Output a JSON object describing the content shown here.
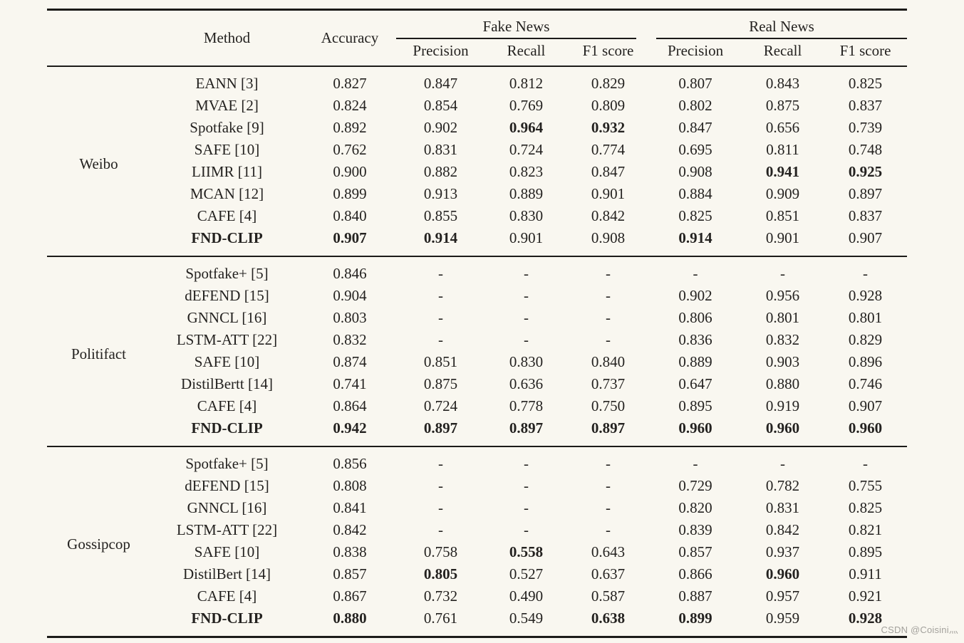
{
  "watermark": "CSDN @Coisini灬",
  "table": {
    "header": {
      "method": "Method",
      "accuracy": "Accuracy",
      "fake_news": "Fake News",
      "real_news": "Real News",
      "sub": [
        "Precision",
        "Recall",
        "F1 score"
      ]
    },
    "sections": [
      {
        "dataset": "Weibo",
        "rows": [
          {
            "method": "EANN [3]",
            "method_bold": false,
            "values": [
              "0.827",
              "0.847",
              "0.812",
              "0.829",
              "0.807",
              "0.843",
              "0.825"
            ],
            "bold": [
              0,
              0,
              0,
              0,
              0,
              0,
              0
            ]
          },
          {
            "method": "MVAE [2]",
            "method_bold": false,
            "values": [
              "0.824",
              "0.854",
              "0.769",
              "0.809",
              "0.802",
              "0.875",
              "0.837"
            ],
            "bold": [
              0,
              0,
              0,
              0,
              0,
              0,
              0
            ]
          },
          {
            "method": "Spotfake [9]",
            "method_bold": false,
            "values": [
              "0.892",
              "0.902",
              "0.964",
              "0.932",
              "0.847",
              "0.656",
              "0.739"
            ],
            "bold": [
              0,
              0,
              1,
              1,
              0,
              0,
              0
            ]
          },
          {
            "method": "SAFE [10]",
            "method_bold": false,
            "values": [
              "0.762",
              "0.831",
              "0.724",
              "0.774",
              "0.695",
              "0.811",
              "0.748"
            ],
            "bold": [
              0,
              0,
              0,
              0,
              0,
              0,
              0
            ]
          },
          {
            "method": "LIIMR [11]",
            "method_bold": false,
            "values": [
              "0.900",
              "0.882",
              "0.823",
              "0.847",
              "0.908",
              "0.941",
              "0.925"
            ],
            "bold": [
              0,
              0,
              0,
              0,
              0,
              1,
              1
            ]
          },
          {
            "method": "MCAN [12]",
            "method_bold": false,
            "values": [
              "0.899",
              "0.913",
              "0.889",
              "0.901",
              "0.884",
              "0.909",
              "0.897"
            ],
            "bold": [
              0,
              0,
              0,
              0,
              0,
              0,
              0
            ]
          },
          {
            "method": "CAFE [4]",
            "method_bold": false,
            "values": [
              "0.840",
              "0.855",
              "0.830",
              "0.842",
              "0.825",
              "0.851",
              "0.837"
            ],
            "bold": [
              0,
              0,
              0,
              0,
              0,
              0,
              0
            ]
          },
          {
            "method": "FND-CLIP",
            "method_bold": true,
            "values": [
              "0.907",
              "0.914",
              "0.901",
              "0.908",
              "0.914",
              "0.901",
              "0.907"
            ],
            "bold": [
              1,
              1,
              0,
              0,
              1,
              0,
              0
            ]
          }
        ]
      },
      {
        "dataset": "Politifact",
        "rows": [
          {
            "method": "Spotfake+ [5]",
            "method_bold": false,
            "values": [
              "0.846",
              "-",
              "-",
              "-",
              "-",
              "-",
              "-"
            ],
            "bold": [
              0,
              0,
              0,
              0,
              0,
              0,
              0
            ]
          },
          {
            "method": "dEFEND [15]",
            "method_bold": false,
            "values": [
              "0.904",
              "-",
              "-",
              "-",
              "0.902",
              "0.956",
              "0.928"
            ],
            "bold": [
              0,
              0,
              0,
              0,
              0,
              0,
              0
            ]
          },
          {
            "method": "GNNCL [16]",
            "method_bold": false,
            "values": [
              "0.803",
              "-",
              "-",
              "-",
              "0.806",
              "0.801",
              "0.801"
            ],
            "bold": [
              0,
              0,
              0,
              0,
              0,
              0,
              0
            ]
          },
          {
            "method": "LSTM-ATT [22]",
            "method_bold": false,
            "values": [
              "0.832",
              "-",
              "-",
              "-",
              "0.836",
              "0.832",
              "0.829"
            ],
            "bold": [
              0,
              0,
              0,
              0,
              0,
              0,
              0
            ]
          },
          {
            "method": "SAFE [10]",
            "method_bold": false,
            "values": [
              "0.874",
              "0.851",
              "0.830",
              "0.840",
              "0.889",
              "0.903",
              "0.896"
            ],
            "bold": [
              0,
              0,
              0,
              0,
              0,
              0,
              0
            ]
          },
          {
            "method": "DistilBertt [14]",
            "method_bold": false,
            "values": [
              "0.741",
              "0.875",
              "0.636",
              "0.737",
              "0.647",
              "0.880",
              "0.746"
            ],
            "bold": [
              0,
              0,
              0,
              0,
              0,
              0,
              0
            ]
          },
          {
            "method": "CAFE [4]",
            "method_bold": false,
            "values": [
              "0.864",
              "0.724",
              "0.778",
              "0.750",
              "0.895",
              "0.919",
              "0.907"
            ],
            "bold": [
              0,
              0,
              0,
              0,
              0,
              0,
              0
            ]
          },
          {
            "method": "FND-CLIP",
            "method_bold": true,
            "values": [
              "0.942",
              "0.897",
              "0.897",
              "0.897",
              "0.960",
              "0.960",
              "0.960"
            ],
            "bold": [
              1,
              1,
              1,
              1,
              1,
              1,
              1
            ]
          }
        ]
      },
      {
        "dataset": "Gossipcop",
        "rows": [
          {
            "method": "Spotfake+ [5]",
            "method_bold": false,
            "values": [
              "0.856",
              "-",
              "-",
              "-",
              "-",
              "-",
              "-"
            ],
            "bold": [
              0,
              0,
              0,
              0,
              0,
              0,
              0
            ]
          },
          {
            "method": "dEFEND [15]",
            "method_bold": false,
            "values": [
              "0.808",
              "-",
              "-",
              "-",
              "0.729",
              "0.782",
              "0.755"
            ],
            "bold": [
              0,
              0,
              0,
              0,
              0,
              0,
              0
            ]
          },
          {
            "method": "GNNCL [16]",
            "method_bold": false,
            "values": [
              "0.841",
              "-",
              "-",
              "-",
              "0.820",
              "0.831",
              "0.825"
            ],
            "bold": [
              0,
              0,
              0,
              0,
              0,
              0,
              0
            ]
          },
          {
            "method": "LSTM-ATT [22]",
            "method_bold": false,
            "values": [
              "0.842",
              "-",
              "-",
              "-",
              "0.839",
              "0.842",
              "0.821"
            ],
            "bold": [
              0,
              0,
              0,
              0,
              0,
              0,
              0
            ]
          },
          {
            "method": "SAFE [10]",
            "method_bold": false,
            "values": [
              "0.838",
              "0.758",
              "0.558",
              "0.643",
              "0.857",
              "0.937",
              "0.895"
            ],
            "bold": [
              0,
              0,
              1,
              0,
              0,
              0,
              0
            ]
          },
          {
            "method": "DistilBert [14]",
            "method_bold": false,
            "values": [
              "0.857",
              "0.805",
              "0.527",
              "0.637",
              "0.866",
              "0.960",
              "0.911"
            ],
            "bold": [
              0,
              1,
              0,
              0,
              0,
              1,
              0
            ]
          },
          {
            "method": "CAFE [4]",
            "method_bold": false,
            "values": [
              "0.867",
              "0.732",
              "0.490",
              "0.587",
              "0.887",
              "0.957",
              "0.921"
            ],
            "bold": [
              0,
              0,
              0,
              0,
              0,
              0,
              0
            ]
          },
          {
            "method": "FND-CLIP",
            "method_bold": true,
            "values": [
              "0.880",
              "0.761",
              "0.549",
              "0.638",
              "0.899",
              "0.959",
              "0.928"
            ],
            "bold": [
              1,
              0,
              0,
              1,
              1,
              0,
              1
            ]
          }
        ]
      }
    ]
  }
}
